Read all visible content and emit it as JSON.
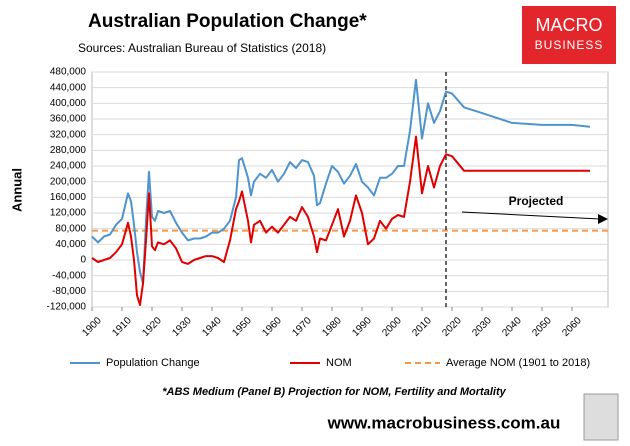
{
  "chart_data": {
    "type": "line",
    "title": "Australian Population Change*",
    "subtitle": "Sources: Australian Bureau of Statistics (2018)",
    "y_label": "Annual",
    "footnote": "*ABS Medium (Panel B) Projection for NOM, Fertility and Mortality",
    "website": "www.macrobusiness.com.au",
    "logo": [
      "MACRO",
      "BUSINESS"
    ],
    "annotation": "Projected",
    "projection_start": 2018,
    "x": [
      1900,
      1902,
      1904,
      1906,
      1908,
      1910,
      1912,
      1913,
      1914,
      1915,
      1916,
      1917,
      1918,
      1919,
      1920,
      1921,
      1922,
      1924,
      1926,
      1928,
      1930,
      1932,
      1934,
      1936,
      1938,
      1940,
      1942,
      1944,
      1946,
      1948,
      1949,
      1950,
      1952,
      1953,
      1954,
      1956,
      1958,
      1960,
      1962,
      1964,
      1966,
      1968,
      1970,
      1972,
      1974,
      1975,
      1976,
      1978,
      1980,
      1982,
      1984,
      1986,
      1988,
      1990,
      1992,
      1994,
      1996,
      1998,
      2000,
      2002,
      2004,
      2006,
      2008,
      2010,
      2012,
      2014,
      2016,
      2018,
      2020,
      2024,
      2030,
      2040,
      2050,
      2060,
      2066
    ],
    "series": [
      {
        "name": "Population Change",
        "color": "#4f94cd",
        "values": [
          60000,
          45000,
          60000,
          65000,
          90000,
          105000,
          170000,
          150000,
          90000,
          20000,
          -30000,
          -60000,
          100000,
          225000,
          110000,
          100000,
          125000,
          120000,
          125000,
          95000,
          70000,
          50000,
          55000,
          55000,
          60000,
          70000,
          70000,
          80000,
          100000,
          160000,
          255000,
          260000,
          210000,
          165000,
          200000,
          220000,
          210000,
          230000,
          200000,
          220000,
          250000,
          235000,
          255000,
          250000,
          215000,
          140000,
          145000,
          195000,
          240000,
          225000,
          195000,
          215000,
          245000,
          200000,
          185000,
          165000,
          210000,
          210000,
          220000,
          240000,
          240000,
          330000,
          460000,
          310000,
          400000,
          350000,
          380000,
          430000,
          425000,
          390000,
          375000,
          350000,
          345000,
          345000,
          340000
        ]
      },
      {
        "name": "NOM",
        "color": "#e00000",
        "values": [
          5000,
          -5000,
          0,
          5000,
          20000,
          40000,
          95000,
          60000,
          0,
          -90000,
          -115000,
          -60000,
          50000,
          170000,
          35000,
          25000,
          45000,
          40000,
          50000,
          30000,
          -5000,
          -10000,
          0,
          5000,
          10000,
          10000,
          5000,
          -5000,
          50000,
          130000,
          150000,
          175000,
          100000,
          45000,
          90000,
          100000,
          70000,
          85000,
          70000,
          90000,
          110000,
          100000,
          135000,
          110000,
          60000,
          20000,
          55000,
          50000,
          90000,
          130000,
          60000,
          100000,
          165000,
          120000,
          40000,
          55000,
          100000,
          80000,
          105000,
          115000,
          110000,
          200000,
          315000,
          170000,
          240000,
          185000,
          240000,
          270000,
          265000,
          228000,
          228000,
          228000,
          228000,
          228000,
          228000
        ]
      }
    ],
    "reference_lines": [
      {
        "name": "Average NOM (1901 to 2018)",
        "value": 75000,
        "color": "#f79646"
      }
    ],
    "xlim": [
      1900,
      2072
    ],
    "xticks": [
      1900,
      1910,
      1920,
      1930,
      1940,
      1950,
      1960,
      1970,
      1980,
      1990,
      2000,
      2010,
      2020,
      2030,
      2040,
      2050,
      2060
    ],
    "ylim": [
      -120000,
      480000
    ],
    "yticks": [
      {
        "value": -120000,
        "label": "-120,000"
      },
      {
        "value": -80000,
        "label": "-80,000"
      },
      {
        "value": -40000,
        "label": "-40,000"
      },
      0,
      {
        "value": 40000,
        "label": "40,000"
      },
      {
        "value": 80000,
        "label": "80,000"
      },
      {
        "value": 120000,
        "label": "120,000"
      },
      {
        "value": 160000,
        "label": "160,000"
      },
      {
        "value": 200000,
        "label": "200,000"
      },
      {
        "value": 240000,
        "label": "240,000"
      },
      {
        "value": 280000,
        "label": "280,000"
      },
      {
        "value": 320000,
        "label": "320,000"
      },
      {
        "value": 360000,
        "label": "360,000"
      },
      {
        "value": 400000,
        "label": "400,000"
      },
      {
        "value": 440000,
        "label": "440,000"
      },
      {
        "value": 480000,
        "label": "480,000"
      }
    ],
    "grid": true
  }
}
